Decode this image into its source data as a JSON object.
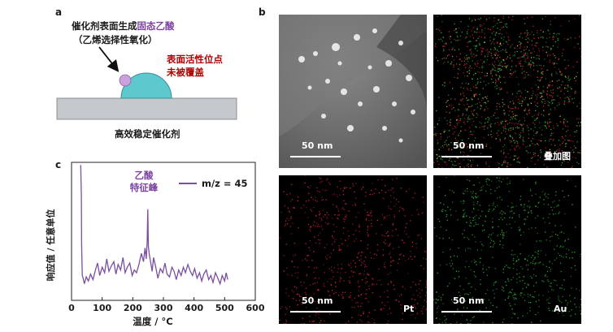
{
  "panel_a": {
    "label": "a",
    "note_line1_black": "催化剂表面生成",
    "note_line1_purple": "固态乙酸",
    "note_line2": "（乙烯选择性氧化）",
    "red_line1": "表面活性位点",
    "red_line2": "未被覆盖",
    "caption": "高效稳定催化剂",
    "colors": {
      "support": "#c6c9cb",
      "particle": "#5ec8cf",
      "acid": "#c9a1dc"
    }
  },
  "panel_b": {
    "label": "b",
    "scale_text": "50 nm",
    "overlay_label": "叠加图",
    "pt_label": "Pt",
    "au_label": "Au",
    "colors": {
      "pt": "#e0263a",
      "au": "#2fb53a"
    }
  },
  "panel_c": {
    "label": "c",
    "peak_label_line1": "乙酸",
    "peak_label_line2": "特征峰",
    "chart_data": {
      "type": "line",
      "title": "",
      "xlabel": "温度 / °C",
      "ylabel": "响应值 / 任意单位",
      "xlim": [
        0,
        600
      ],
      "ylim": [
        0,
        1
      ],
      "xticks": [
        "0",
        "100",
        "200",
        "300",
        "400",
        "500",
        "600"
      ],
      "legend": "top-right",
      "series": [
        {
          "name": "m/z = 45",
          "color": "#7a4ea0",
          "x": [
            30,
            32,
            33,
            35,
            38,
            42,
            48,
            55,
            62,
            70,
            78,
            85,
            92,
            100,
            108,
            115,
            122,
            130,
            138,
            145,
            152,
            160,
            168,
            175,
            182,
            190,
            198,
            205,
            212,
            220,
            228,
            235,
            240,
            244,
            247,
            249,
            251,
            254,
            258,
            263,
            268,
            275,
            282,
            290,
            298,
            305,
            312,
            320,
            328,
            335,
            342,
            350,
            358,
            365,
            372,
            380,
            388,
            395,
            402,
            410,
            418,
            425,
            432,
            440,
            448,
            455,
            462,
            470,
            478,
            485,
            492,
            500,
            505,
            510
          ],
          "y": [
            0.98,
            0.75,
            0.4,
            0.18,
            0.16,
            0.12,
            0.17,
            0.14,
            0.19,
            0.15,
            0.22,
            0.27,
            0.18,
            0.24,
            0.2,
            0.3,
            0.21,
            0.25,
            0.28,
            0.19,
            0.26,
            0.22,
            0.31,
            0.2,
            0.24,
            0.27,
            0.18,
            0.22,
            0.2,
            0.26,
            0.34,
            0.28,
            0.38,
            0.3,
            0.42,
            0.66,
            0.39,
            0.33,
            0.28,
            0.21,
            0.31,
            0.24,
            0.16,
            0.23,
            0.2,
            0.27,
            0.19,
            0.17,
            0.24,
            0.21,
            0.15,
            0.22,
            0.18,
            0.24,
            0.2,
            0.26,
            0.21,
            0.18,
            0.23,
            0.16,
            0.2,
            0.14,
            0.19,
            0.22,
            0.15,
            0.18,
            0.13,
            0.2,
            0.16,
            0.12,
            0.18,
            0.14,
            0.2,
            0.15
          ]
        }
      ]
    }
  }
}
